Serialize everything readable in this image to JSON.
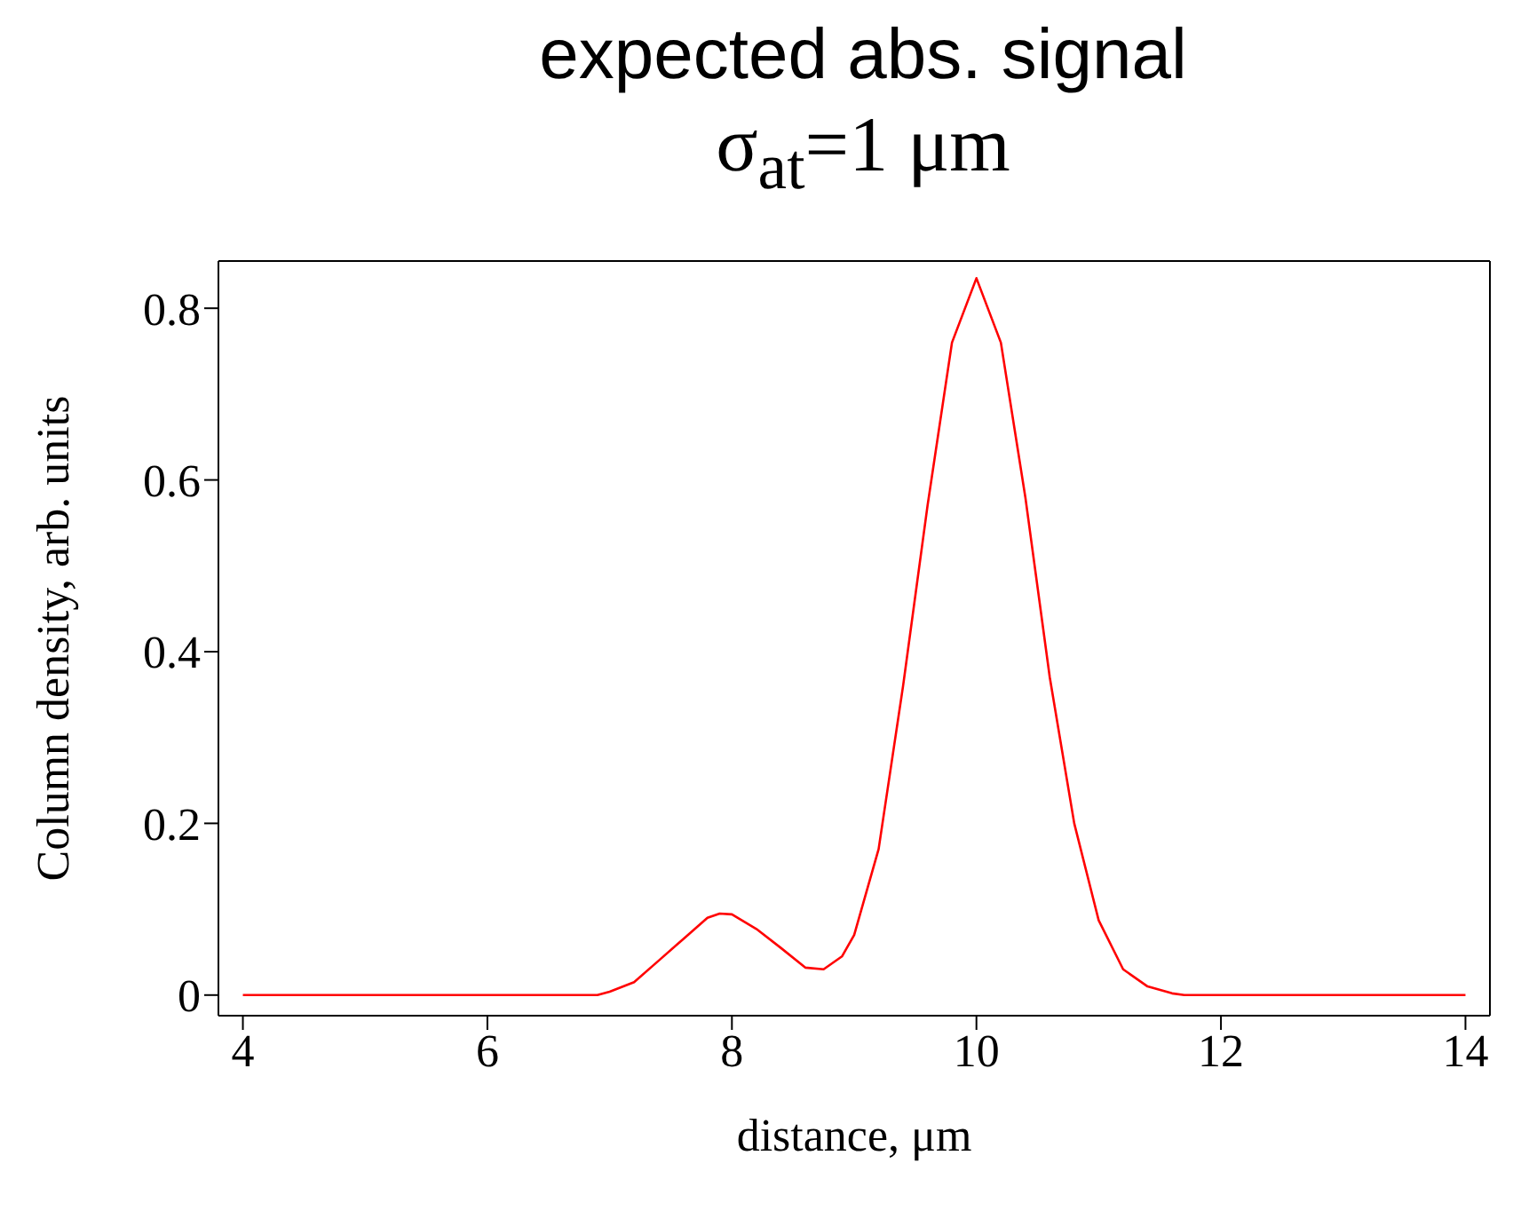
{
  "chart_data": {
    "type": "line",
    "title": "expected abs. signal",
    "subtitle": "σ$_{at}$=1 μm",
    "xlabel": "distance, μm",
    "ylabel": "Column density, arb. units",
    "x": [
      4,
      6.9,
      7.0,
      7.2,
      7.4,
      7.6,
      7.8,
      7.9,
      8.0,
      8.2,
      8.4,
      8.6,
      8.75,
      8.9,
      9.0,
      9.2,
      9.4,
      9.6,
      9.8,
      10.0,
      10.2,
      10.4,
      10.6,
      10.8,
      11.0,
      11.2,
      11.4,
      11.6,
      11.7,
      14
    ],
    "series": [
      {
        "color": "#ff0000",
        "values": [
          0,
          0,
          0.004,
          0.015,
          0.04,
          0.065,
          0.09,
          0.095,
          0.094,
          0.077,
          0.055,
          0.032,
          0.03,
          0.045,
          0.07,
          0.17,
          0.36,
          0.57,
          0.76,
          0.835,
          0.76,
          0.58,
          0.37,
          0.2,
          0.087,
          0.03,
          0.01,
          0.002,
          0,
          0
        ]
      }
    ],
    "xlim": [
      3.8,
      14.2
    ],
    "ylim": [
      -0.024,
      0.855
    ],
    "xticks": [
      4,
      6,
      8,
      10,
      12,
      14
    ],
    "yticks": [
      0,
      0.2,
      0.4,
      0.6,
      0.8
    ],
    "grid": false,
    "legend": false,
    "marker": "none",
    "line_style": "solid"
  }
}
